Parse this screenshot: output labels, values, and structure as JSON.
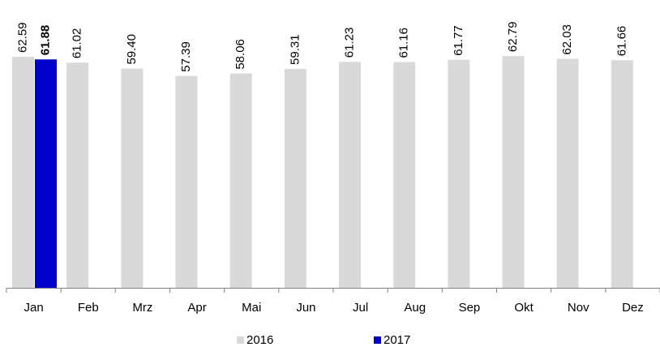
{
  "chart_data": {
    "type": "bar",
    "categories": [
      "Jan",
      "Feb",
      "Mrz",
      "Apr",
      "Mai",
      "Jun",
      "Jul",
      "Aug",
      "Sep",
      "Okt",
      "Nov",
      "Dez"
    ],
    "series": [
      {
        "name": "2016",
        "color": "#d9d9d9",
        "values": [
          62.59,
          61.02,
          59.4,
          57.39,
          58.06,
          59.31,
          61.23,
          61.16,
          61.77,
          62.79,
          62.03,
          61.66
        ],
        "value_labels": [
          "62.59",
          "61.02",
          "59.40",
          "57.39",
          "58.06",
          "59.31",
          "61.23",
          "61.16",
          "61.77",
          "62.79",
          "62.03",
          "61.66"
        ]
      },
      {
        "name": "2017",
        "color": "#0000cc",
        "values": [
          61.88,
          null,
          null,
          null,
          null,
          null,
          null,
          null,
          null,
          null,
          null,
          null
        ],
        "value_labels": [
          "61.88",
          null,
          null,
          null,
          null,
          null,
          null,
          null,
          null,
          null,
          null,
          null
        ]
      }
    ],
    "legend": "bottom"
  }
}
